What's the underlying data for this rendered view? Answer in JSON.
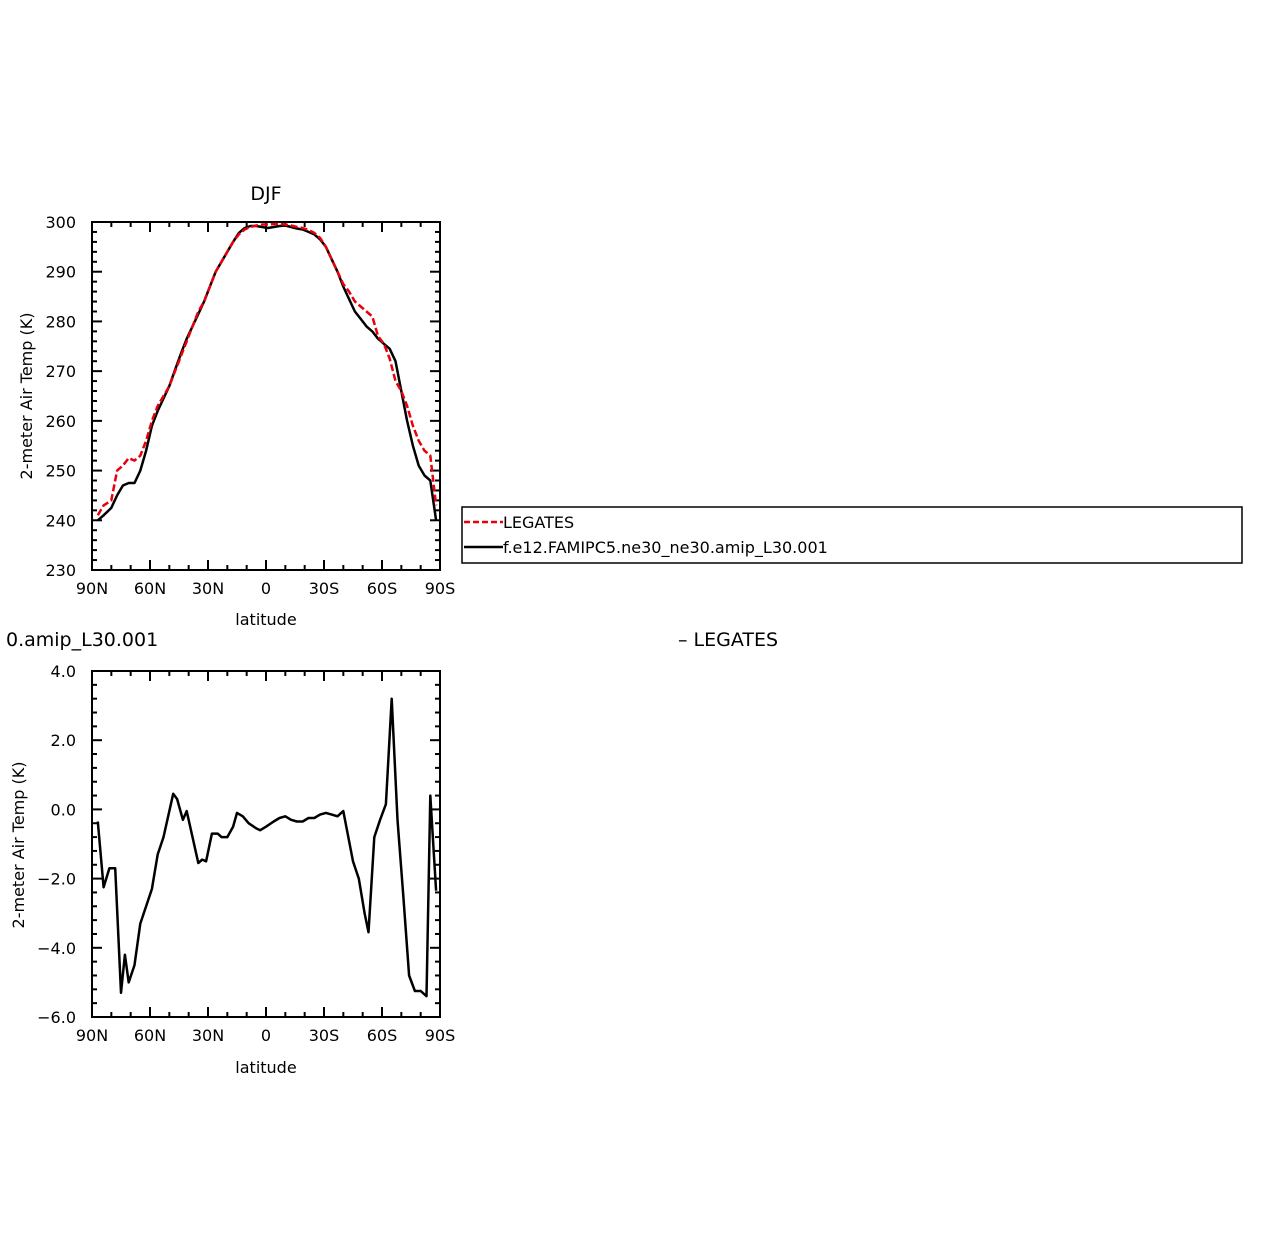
{
  "chart_data": [
    {
      "type": "line",
      "title": "DJF",
      "xlabel": "latitude",
      "ylabel": "2-meter Air Temp (K)",
      "xlim": [
        90,
        -90
      ],
      "ylim": [
        230,
        300
      ],
      "x_ticks": [
        90,
        60,
        30,
        0,
        -30,
        -60,
        -90
      ],
      "x_tick_labels": [
        "90N",
        "60N",
        "30N",
        "0",
        "30S",
        "60S",
        "90S"
      ],
      "y_ticks": [
        230,
        240,
        250,
        260,
        270,
        280,
        290,
        300
      ],
      "y_tick_labels": [
        "230",
        "240",
        "250",
        "260",
        "270",
        "280",
        "290",
        "300"
      ],
      "legend_position": "right",
      "legend": [
        "LEGATES",
        "f.e12.FAMIPC5.ne30_ne30.amip_L30.001"
      ],
      "series": [
        {
          "name": "LEGATES",
          "color": "#e8000b",
          "dash": "dashed",
          "points": [
            [
              87,
              241
            ],
            [
              84,
              243
            ],
            [
              80,
              244
            ],
            [
              77,
              250
            ],
            [
              74,
              251
            ],
            [
              71,
              252.5
            ],
            [
              68,
              252
            ],
            [
              65,
              253
            ],
            [
              62,
              256
            ],
            [
              59,
              260
            ],
            [
              56,
              263
            ],
            [
              53,
              265
            ],
            [
              50,
              267
            ],
            [
              47,
              270
            ],
            [
              44,
              273
            ],
            [
              41,
              276
            ],
            [
              38,
              279
            ],
            [
              35,
              282
            ],
            [
              32,
              284
            ],
            [
              29,
              287
            ],
            [
              26,
              290
            ],
            [
              23,
              292
            ],
            [
              20,
              294
            ],
            [
              17,
              296
            ],
            [
              14,
              297.5
            ],
            [
              11,
              298.5
            ],
            [
              8,
              299
            ],
            [
              5,
              299.3
            ],
            [
              2,
              299.5
            ],
            [
              -1,
              299.5
            ],
            [
              -4,
              299.6
            ],
            [
              -7,
              299.6
            ],
            [
              -10,
              299.5
            ],
            [
              -13,
              299.3
            ],
            [
              -16,
              299
            ],
            [
              -19,
              298.8
            ],
            [
              -22,
              298.4
            ],
            [
              -25,
              297.8
            ],
            [
              -28,
              296.8
            ],
            [
              -31,
              295
            ],
            [
              -34,
              292.5
            ],
            [
              -37,
              290
            ],
            [
              -40,
              287.5
            ],
            [
              -43,
              286
            ],
            [
              -46,
              284
            ],
            [
              -49,
              283
            ],
            [
              -52,
              282
            ],
            [
              -55,
              281
            ],
            [
              -58,
              277
            ],
            [
              -61,
              275.5
            ],
            [
              -64,
              272.5
            ],
            [
              -67,
              268
            ],
            [
              -70,
              266
            ],
            [
              -73,
              263
            ],
            [
              -76,
              259
            ],
            [
              -79,
              256
            ],
            [
              -82,
              254
            ],
            [
              -85,
              253
            ],
            [
              -88,
              243
            ]
          ]
        },
        {
          "name": "f.e12.FAMIPC5.ne30_ne30.amip_L30.001",
          "color": "#000000",
          "dash": "solid",
          "points": [
            [
              87,
              240
            ],
            [
              84,
              241
            ],
            [
              80,
              242.5
            ],
            [
              77,
              245
            ],
            [
              74,
              247
            ],
            [
              71,
              247.5
            ],
            [
              68,
              247.5
            ],
            [
              65,
              250
            ],
            [
              62,
              254
            ],
            [
              59,
              259
            ],
            [
              56,
              262
            ],
            [
              53,
              264.5
            ],
            [
              50,
              267
            ],
            [
              47,
              270.3
            ],
            [
              44,
              273.5
            ],
            [
              41,
              276.5
            ],
            [
              38,
              279
            ],
            [
              35,
              281.5
            ],
            [
              32,
              284
            ],
            [
              29,
              287
            ],
            [
              26,
              290
            ],
            [
              23,
              292
            ],
            [
              20,
              294
            ],
            [
              17,
              296
            ],
            [
              14,
              297.8
            ],
            [
              11,
              298.8
            ],
            [
              8,
              299.2
            ],
            [
              5,
              299.2
            ],
            [
              2,
              299
            ],
            [
              -1,
              298.8
            ],
            [
              -4,
              299
            ],
            [
              -7,
              299.2
            ],
            [
              -10,
              299.3
            ],
            [
              -13,
              299
            ],
            [
              -16,
              298.7
            ],
            [
              -19,
              298.5
            ],
            [
              -22,
              298
            ],
            [
              -25,
              297.5
            ],
            [
              -28,
              296.5
            ],
            [
              -31,
              295
            ],
            [
              -34,
              292.5
            ],
            [
              -37,
              290
            ],
            [
              -40,
              287
            ],
            [
              -43,
              284.5
            ],
            [
              -46,
              282
            ],
            [
              -49,
              280.5
            ],
            [
              -52,
              279
            ],
            [
              -55,
              278
            ],
            [
              -58,
              276.5
            ],
            [
              -61,
              275.5
            ],
            [
              -64,
              274.5
            ],
            [
              -67,
              272
            ],
            [
              -70,
              266
            ],
            [
              -73,
              260
            ],
            [
              -76,
              255
            ],
            [
              -79,
              251
            ],
            [
              -82,
              249
            ],
            [
              -85,
              248
            ],
            [
              -88,
              240
            ]
          ]
        }
      ]
    },
    {
      "type": "line",
      "title": "0.amip_L30.001 – LEGATES",
      "xlabel": "latitude",
      "ylabel": "2-meter Air Temp (K)",
      "xlim": [
        90,
        -90
      ],
      "ylim": [
        -6,
        4
      ],
      "x_ticks": [
        90,
        60,
        30,
        0,
        -30,
        -60,
        -90
      ],
      "x_tick_labels": [
        "90N",
        "60N",
        "30N",
        "0",
        "30S",
        "60S",
        "90S"
      ],
      "y_ticks": [
        -6,
        -4,
        -2,
        0,
        2,
        4
      ],
      "y_tick_labels": [
        "−6.0",
        "−4.0",
        "−2.0",
        "0.0",
        "2.0",
        "4.0"
      ],
      "series": [
        {
          "color": "#000000",
          "dash": "solid",
          "points": [
            [
              87,
              -0.35
            ],
            [
              84,
              -2.25
            ],
            [
              81,
              -1.7
            ],
            [
              78,
              -1.7
            ],
            [
              75,
              -5.3
            ],
            [
              73,
              -4.2
            ],
            [
              71,
              -5.0
            ],
            [
              68,
              -4.5
            ],
            [
              65,
              -3.3
            ],
            [
              59,
              -2.3
            ],
            [
              56,
              -1.3
            ],
            [
              53,
              -0.8
            ],
            [
              48,
              0.45
            ],
            [
              46,
              0.3
            ],
            [
              43,
              -0.3
            ],
            [
              41,
              -0.05
            ],
            [
              35,
              -1.55
            ],
            [
              33,
              -1.45
            ],
            [
              31,
              -1.5
            ],
            [
              28,
              -0.7
            ],
            [
              25,
              -0.7
            ],
            [
              23,
              -0.8
            ],
            [
              20,
              -0.8
            ],
            [
              17,
              -0.5
            ],
            [
              15,
              -0.1
            ],
            [
              12,
              -0.2
            ],
            [
              9,
              -0.4
            ],
            [
              5,
              -0.55
            ],
            [
              3,
              -0.6
            ],
            [
              0,
              -0.5
            ],
            [
              -4,
              -0.35
            ],
            [
              -7,
              -0.25
            ],
            [
              -10,
              -0.2
            ],
            [
              -13,
              -0.3
            ],
            [
              -16,
              -0.35
            ],
            [
              -19,
              -0.35
            ],
            [
              -22,
              -0.25
            ],
            [
              -25,
              -0.25
            ],
            [
              -28,
              -0.15
            ],
            [
              -31,
              -0.1
            ],
            [
              -34,
              -0.15
            ],
            [
              -37,
              -0.2
            ],
            [
              -40,
              -0.05
            ],
            [
              -45,
              -1.5
            ],
            [
              -48,
              -2.0
            ],
            [
              -51,
              -3.0
            ],
            [
              -53,
              -3.55
            ],
            [
              -56,
              -0.8
            ],
            [
              -59,
              -0.3
            ],
            [
              -62,
              0.15
            ],
            [
              -65,
              3.2
            ],
            [
              -68,
              -0.3
            ],
            [
              -71,
              -2.5
            ],
            [
              -74,
              -4.8
            ],
            [
              -77,
              -5.25
            ],
            [
              -80,
              -5.25
            ],
            [
              -83,
              -5.4
            ],
            [
              -85,
              0.4
            ],
            [
              -88,
              -2.35
            ]
          ]
        }
      ]
    }
  ]
}
